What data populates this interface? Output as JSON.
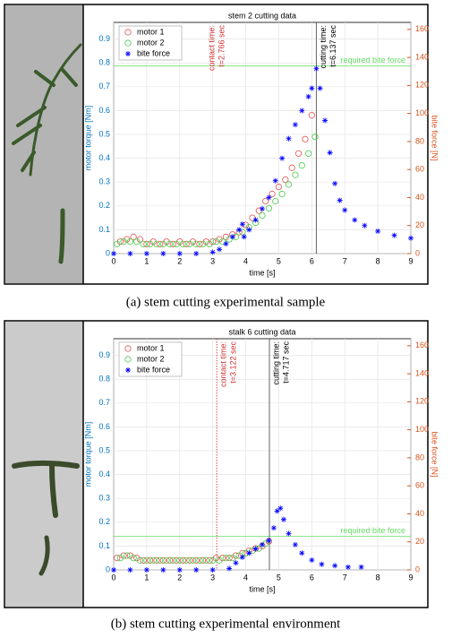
{
  "chart_data": [
    {
      "type": "scatter",
      "title": "stem 2 cutting data",
      "xlabel": "time [s]",
      "ylabel": "motor torque [Nm]",
      "y2label": "bite force [N]",
      "xlim": [
        0,
        9
      ],
      "xticks": [
        0,
        1,
        2,
        3,
        4,
        5,
        6,
        7,
        8,
        9
      ],
      "ylim": [
        0,
        0.97
      ],
      "yticks": [
        0,
        0.1,
        0.2,
        0.3,
        0.4,
        0.5,
        0.6,
        0.7,
        0.8,
        0.9
      ],
      "y2lim": [
        0,
        165
      ],
      "y2ticks": [
        0,
        20,
        40,
        60,
        80,
        100,
        120,
        140,
        160
      ],
      "grid": true,
      "legend": "top-left",
      "series": [
        {
          "name": "motor 1",
          "color": "#e05050",
          "marker": "circle",
          "x": [
            0.2,
            0.4,
            0.6,
            0.8,
            1.0,
            1.2,
            1.4,
            1.6,
            1.8,
            2.0,
            2.2,
            2.4,
            2.6,
            2.8,
            3.0,
            3.2,
            3.4,
            3.6,
            3.8,
            4.0,
            4.2,
            4.4,
            4.6,
            4.8,
            5.0,
            5.2,
            5.4,
            5.6,
            5.8,
            6.0
          ],
          "values": [
            0.05,
            0.06,
            0.07,
            0.06,
            0.04,
            0.05,
            0.04,
            0.05,
            0.04,
            0.05,
            0.04,
            0.05,
            0.04,
            0.05,
            0.05,
            0.06,
            0.07,
            0.08,
            0.09,
            0.12,
            0.15,
            0.18,
            0.22,
            0.25,
            0.28,
            0.31,
            0.36,
            0.42,
            0.48,
            0.58
          ]
        },
        {
          "name": "motor 2",
          "color": "#44cc44",
          "marker": "circle",
          "x": [
            0.1,
            0.3,
            0.5,
            0.7,
            0.9,
            1.1,
            1.3,
            1.5,
            1.7,
            1.9,
            2.1,
            2.3,
            2.5,
            2.7,
            2.9,
            3.1,
            3.3,
            3.5,
            3.7,
            3.9,
            4.1,
            4.3,
            4.5,
            4.7,
            4.9,
            5.1,
            5.3,
            5.5,
            5.7,
            5.9,
            6.1
          ],
          "values": [
            0.04,
            0.05,
            0.05,
            0.05,
            0.04,
            0.04,
            0.04,
            0.04,
            0.04,
            0.04,
            0.04,
            0.04,
            0.04,
            0.04,
            0.04,
            0.05,
            0.05,
            0.06,
            0.07,
            0.09,
            0.11,
            0.13,
            0.16,
            0.19,
            0.22,
            0.25,
            0.29,
            0.33,
            0.37,
            0.42,
            0.49
          ]
        },
        {
          "name": "bite force",
          "color": "#0000ff",
          "marker": "asterisk",
          "axis": "y2",
          "x": [
            0,
            0.5,
            1,
            1.5,
            2,
            2.5,
            3,
            3.2,
            3.4,
            3.6,
            3.8,
            3.9,
            3.95,
            4.1,
            4.3,
            4.5,
            4.7,
            4.9,
            5.1,
            5.3,
            5.5,
            5.7,
            5.9,
            6.0,
            6.137,
            6.25,
            6.4,
            6.55,
            6.7,
            6.85,
            7.0,
            7.3,
            7.6,
            8.0,
            8.5,
            9.0
          ],
          "values": [
            0,
            0,
            0,
            0,
            0,
            0,
            1,
            3,
            7,
            12,
            17,
            21,
            12,
            17,
            24,
            32,
            40,
            52,
            68,
            82,
            92,
            102,
            112,
            118,
            132,
            118,
            95,
            72,
            50,
            38,
            31,
            24,
            20,
            16,
            13,
            11
          ]
        }
      ],
      "required": {
        "label": "required bite force",
        "value": 134,
        "axis": "y2",
        "color": "#66dd66"
      },
      "events": [
        {
          "label": "contact time:",
          "time_label": "t=2.766 sec",
          "x": 2.766,
          "color": "#d03030",
          "line": "none"
        },
        {
          "label": "cutting time:",
          "time_label": "t=6.137 sec",
          "x": 6.137,
          "color": "#000000",
          "line": "solid"
        }
      ]
    },
    {
      "type": "scatter",
      "title": "stalk 6 cutting data",
      "xlabel": "time [s]",
      "ylabel": "motor torque [Nm]",
      "y2label": "bite force [N]",
      "xlim": [
        0,
        9
      ],
      "xticks": [
        0,
        1,
        2,
        3,
        4,
        5,
        6,
        7,
        8,
        9
      ],
      "ylim": [
        0,
        0.97
      ],
      "yticks": [
        0,
        0.1,
        0.2,
        0.3,
        0.4,
        0.5,
        0.6,
        0.7,
        0.8,
        0.9
      ],
      "y2lim": [
        0,
        165
      ],
      "y2ticks": [
        0,
        20,
        40,
        60,
        80,
        100,
        120,
        140,
        160
      ],
      "grid": true,
      "legend": "top-left",
      "series": [
        {
          "name": "motor 1",
          "color": "#e05050",
          "marker": "circle",
          "x": [
            0.1,
            0.3,
            0.5,
            0.7,
            0.9,
            1.1,
            1.3,
            1.5,
            1.7,
            1.9,
            2.1,
            2.3,
            2.5,
            2.7,
            2.9,
            3.1,
            3.3,
            3.5,
            3.7,
            3.9,
            4.1,
            4.3,
            4.5,
            4.7
          ],
          "values": [
            0.05,
            0.06,
            0.06,
            0.05,
            0.04,
            0.04,
            0.04,
            0.04,
            0.04,
            0.04,
            0.04,
            0.04,
            0.04,
            0.04,
            0.04,
            0.05,
            0.05,
            0.05,
            0.06,
            0.07,
            0.08,
            0.09,
            0.1,
            0.12
          ]
        },
        {
          "name": "motor 2",
          "color": "#44cc44",
          "marker": "circle",
          "x": [
            0.2,
            0.4,
            0.6,
            0.8,
            1.0,
            1.2,
            1.4,
            1.6,
            1.8,
            2.0,
            2.2,
            2.4,
            2.6,
            2.8,
            3.0,
            3.2,
            3.4,
            3.6,
            3.8,
            4.0,
            4.2,
            4.4,
            4.6
          ],
          "values": [
            0.05,
            0.06,
            0.05,
            0.04,
            0.04,
            0.04,
            0.04,
            0.04,
            0.04,
            0.04,
            0.04,
            0.04,
            0.04,
            0.04,
            0.04,
            0.04,
            0.05,
            0.05,
            0.06,
            0.07,
            0.08,
            0.09,
            0.11
          ]
        },
        {
          "name": "bite force",
          "color": "#0000ff",
          "marker": "asterisk",
          "axis": "y2",
          "x": [
            0,
            0.5,
            1,
            1.5,
            2,
            2.5,
            3,
            3.5,
            3.7,
            3.9,
            4.1,
            4.3,
            4.5,
            4.7,
            4.85,
            4.95,
            5.05,
            5.15,
            5.3,
            5.5,
            5.7,
            6.0,
            6.3,
            6.7,
            7.1,
            7.5
          ],
          "values": [
            0,
            0,
            0,
            0,
            0,
            0,
            0,
            1,
            5,
            9,
            12,
            15,
            18,
            21,
            30,
            42,
            44,
            36,
            26,
            18,
            12,
            7,
            4,
            3,
            2,
            2
          ]
        }
      ],
      "required": {
        "label": "required bite force",
        "value": 24,
        "axis": "y2",
        "color": "#66dd66"
      },
      "events": [
        {
          "label": "contact time:",
          "time_label": "t=3.122 sec",
          "x": 3.122,
          "color": "#d03030",
          "line": "dotted"
        },
        {
          "label": "cutting time:",
          "time_label": "t=4.717 sec",
          "x": 4.717,
          "color": "#000000",
          "line": "solid"
        }
      ]
    }
  ],
  "captions": [
    "(a) stem cutting experimental sample",
    "(b) stem cutting experimental environment"
  ],
  "axis_colors": {
    "left": "#0072bd",
    "right": "#d95319"
  }
}
